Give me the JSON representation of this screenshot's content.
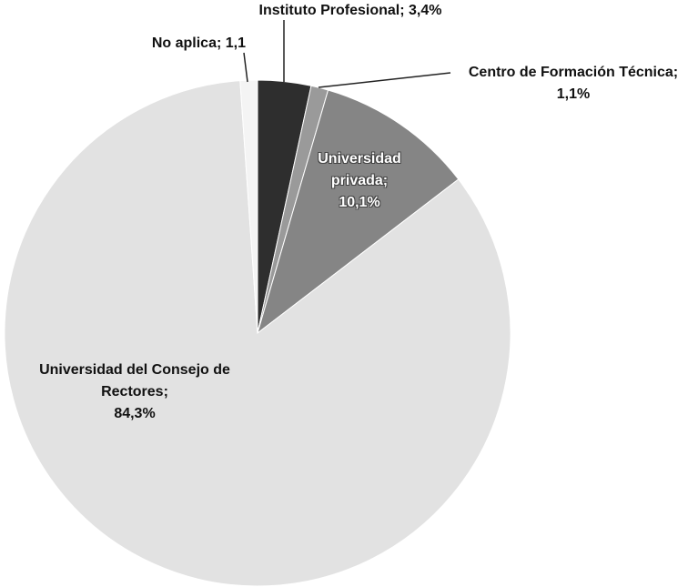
{
  "chart_data": {
    "type": "pie",
    "categories": [
      "Instituto Profesional;",
      "Centro de Formación Técnica;",
      "Universidad privada;",
      "Universidad del Consejo de Rectores;",
      "No aplica;"
    ],
    "values": [
      3.4,
      1.1,
      10.1,
      84.3,
      1.1
    ],
    "value_labels": [
      "3,4%",
      "1,1%",
      "10,1%",
      "84,3%",
      "1,1"
    ],
    "colors": [
      "#2e2e2e",
      "#9a9a9a",
      "#858585",
      "#e2e2e2",
      "#f4f4f4"
    ]
  }
}
